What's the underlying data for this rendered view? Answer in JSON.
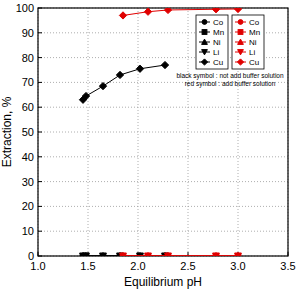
{
  "chart_data": {
    "type": "line",
    "x_label": "Equilibrium pH",
    "y_label": "Extraction, %",
    "xlim": [
      1,
      3.5
    ],
    "xticks": [
      {
        "value": 1,
        "label": "1.0"
      },
      1.5,
      {
        "value": 2,
        "label": "2.0"
      },
      2.5,
      {
        "value": 3,
        "label": "3.0"
      },
      3.5
    ],
    "ylim": [
      0,
      100
    ],
    "yticks": [
      0,
      10,
      20,
      30,
      40,
      50,
      60,
      70,
      80,
      90,
      100
    ],
    "grid": true,
    "legend": "top-right",
    "annotations": [
      "black symbol : not add buffer solution",
      "red symbol : add buffer solution"
    ],
    "series": [
      {
        "name": "Co",
        "color": "#000000",
        "marker": "circle",
        "line_style": "solid",
        "x": [
          1.45,
          1.48,
          1.65,
          1.82,
          2.02,
          2.27
        ],
        "values": [
          0,
          0,
          0,
          0,
          0,
          0
        ]
      },
      {
        "name": "Mn",
        "color": "#000000",
        "marker": "square",
        "line_style": "solid",
        "x": [
          1.45,
          1.48,
          1.65,
          1.82,
          2.02,
          2.27
        ],
        "values": [
          0,
          0,
          0,
          0,
          0,
          0
        ]
      },
      {
        "name": "Ni",
        "color": "#000000",
        "marker": "triangle-up",
        "line_style": "solid",
        "x": [
          1.45,
          1.48,
          1.65,
          1.82,
          2.02,
          2.27
        ],
        "values": [
          0,
          0,
          0,
          0,
          0,
          0
        ]
      },
      {
        "name": "Li",
        "color": "#000000",
        "marker": "triangle-down",
        "line_style": "solid",
        "x": [
          1.45,
          1.48,
          1.65,
          1.82,
          2.02,
          2.27
        ],
        "values": [
          0,
          0,
          0,
          0,
          0,
          0
        ]
      },
      {
        "name": "Cu",
        "color": "#000000",
        "marker": "diamond",
        "line_style": "solid",
        "x": [
          1.45,
          1.48,
          1.65,
          1.82,
          2.02,
          2.27
        ],
        "values": [
          63,
          64.5,
          68.5,
          73,
          75.5,
          77
        ]
      },
      {
        "name": "Co",
        "color": "#e00000",
        "marker": "circle",
        "line_style": "solid",
        "x": [
          1.85,
          2.1,
          2.3,
          2.78,
          3.0
        ],
        "values": [
          0,
          0,
          0,
          0,
          0
        ]
      },
      {
        "name": "Mn",
        "color": "#e00000",
        "marker": "square",
        "line_style": "solid",
        "x": [
          1.85,
          2.1,
          2.3,
          2.78,
          3.0
        ],
        "values": [
          0,
          0,
          0,
          0,
          0
        ]
      },
      {
        "name": "Ni",
        "color": "#e00000",
        "marker": "triangle-up",
        "line_style": "solid",
        "x": [
          1.85,
          2.1,
          2.3,
          2.78,
          3.0
        ],
        "values": [
          0,
          0,
          0,
          0,
          0
        ]
      },
      {
        "name": "Li",
        "color": "#e00000",
        "marker": "triangle-down",
        "line_style": "solid",
        "x": [
          1.85,
          2.1,
          2.3,
          2.78,
          3.0
        ],
        "values": [
          0,
          0,
          0,
          0,
          0
        ]
      },
      {
        "name": "Cu",
        "color": "#e00000",
        "marker": "diamond",
        "line_style": "solid",
        "x": [
          1.85,
          2.1,
          2.3,
          2.78,
          3.0
        ],
        "values": [
          97,
          98.5,
          99.2,
          99.5,
          99.6
        ]
      }
    ]
  }
}
